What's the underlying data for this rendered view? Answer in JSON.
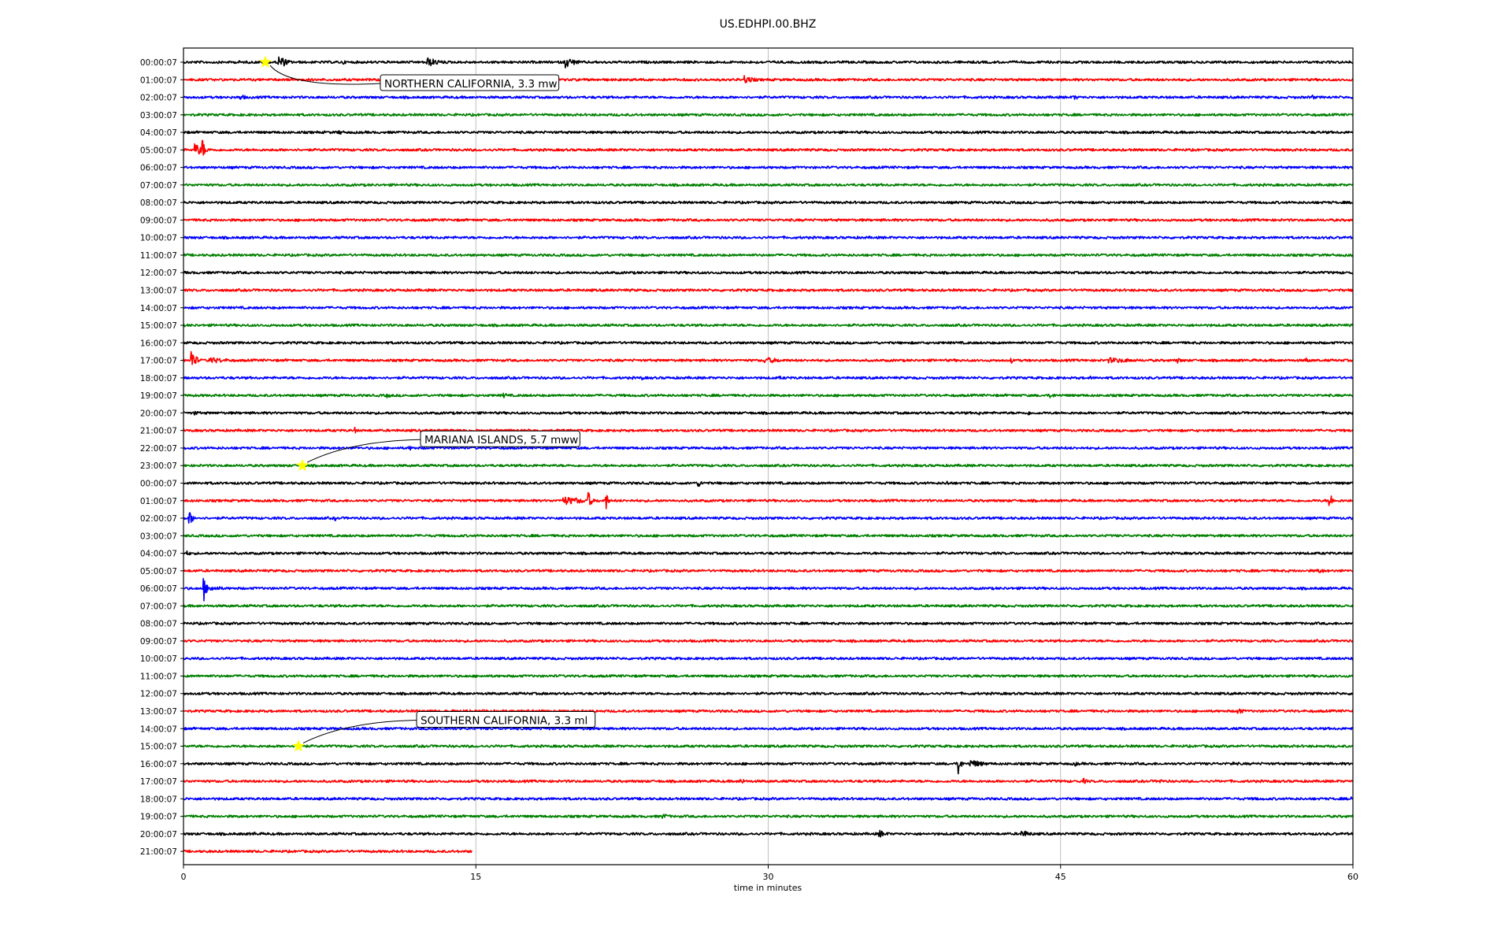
{
  "chart_data": {
    "type": "line",
    "title": "US.EDHPI.00.BHZ",
    "xlabel": "time in minutes",
    "ylabel": "",
    "xlim": [
      0,
      60
    ],
    "xticks": [
      "0",
      "15",
      "30",
      "45",
      "60"
    ],
    "xtick_values": [
      0,
      15,
      30,
      45,
      60
    ],
    "vertical_gridlines_at": [
      15,
      30,
      45
    ],
    "row_colors": [
      "#000000",
      "#ff0000",
      "#0000ff",
      "#008000"
    ],
    "row_labels": [
      "00:00:07",
      "01:00:07",
      "02:00:07",
      "03:00:07",
      "04:00:07",
      "05:00:07",
      "06:00:07",
      "07:00:07",
      "08:00:07",
      "09:00:07",
      "10:00:07",
      "11:00:07",
      "12:00:07",
      "13:00:07",
      "14:00:07",
      "15:00:07",
      "16:00:07",
      "17:00:07",
      "18:00:07",
      "19:00:07",
      "20:00:07",
      "21:00:07",
      "22:00:07",
      "23:00:07",
      "00:00:07",
      "01:00:07",
      "02:00:07",
      "03:00:07",
      "04:00:07",
      "05:00:07",
      "06:00:07",
      "07:00:07",
      "08:00:07",
      "09:00:07",
      "10:00:07",
      "11:00:07",
      "12:00:07",
      "13:00:07",
      "14:00:07",
      "15:00:07",
      "16:00:07",
      "17:00:07",
      "18:00:07",
      "19:00:07",
      "20:00:07",
      "21:00:07"
    ],
    "last_row_end_minute": 14.8,
    "bursts": [
      {
        "row": 0,
        "minute": 4.9,
        "amp": 1.0,
        "dur": 0.9
      },
      {
        "row": 0,
        "minute": 12.5,
        "amp": 0.7,
        "dur": 1.5
      },
      {
        "row": 0,
        "minute": 19.6,
        "amp": 0.8,
        "dur": 1.2
      },
      {
        "row": 0,
        "minute": 2.8,
        "amp": 0.3,
        "dur": 0.5
      },
      {
        "row": 0,
        "minute": 8.2,
        "amp": 0.35,
        "dur": 0.3
      },
      {
        "row": 1,
        "minute": 28.8,
        "amp": 0.6,
        "dur": 1.2
      },
      {
        "row": 1,
        "minute": 23.2,
        "amp": 0.25,
        "dur": 0.6
      },
      {
        "row": 2,
        "minute": 2.9,
        "amp": 0.5,
        "dur": 0.7
      },
      {
        "row": 2,
        "minute": 45.7,
        "amp": 0.35,
        "dur": 0.8
      },
      {
        "row": 2,
        "minute": 57.9,
        "amp": 0.45,
        "dur": 0.3
      },
      {
        "row": 4,
        "minute": 8.0,
        "amp": 0.4,
        "dur": 0.4
      },
      {
        "row": 5,
        "minute": 0.6,
        "amp": 0.9,
        "dur": 1.2
      },
      {
        "row": 5,
        "minute": 1.0,
        "amp": 1.6,
        "dur": 0.2
      },
      {
        "row": 17,
        "minute": 0.4,
        "amp": 1.8,
        "dur": 0.5
      },
      {
        "row": 17,
        "minute": 1.3,
        "amp": 0.5,
        "dur": 2.5
      },
      {
        "row": 17,
        "minute": 29.8,
        "amp": 0.5,
        "dur": 2.2
      },
      {
        "row": 17,
        "minute": 47.5,
        "amp": 0.4,
        "dur": 3.8
      },
      {
        "row": 17,
        "minute": 51.0,
        "amp": 0.4,
        "dur": 0.6
      },
      {
        "row": 17,
        "minute": 57.6,
        "amp": 0.5,
        "dur": 0.4
      },
      {
        "row": 17,
        "minute": 42.5,
        "amp": 0.45,
        "dur": 0.2
      },
      {
        "row": 18,
        "minute": 23.5,
        "amp": 0.35,
        "dur": 0.3
      },
      {
        "row": 18,
        "minute": 30.6,
        "amp": 0.3,
        "dur": 0.3
      },
      {
        "row": 18,
        "minute": 46.5,
        "amp": 0.35,
        "dur": 0.3
      },
      {
        "row": 19,
        "minute": 10.4,
        "amp": 0.4,
        "dur": 0.8
      },
      {
        "row": 19,
        "minute": 16.4,
        "amp": 0.4,
        "dur": 0.8
      },
      {
        "row": 19,
        "minute": 44.5,
        "amp": 0.45,
        "dur": 0.6
      },
      {
        "row": 20,
        "minute": 0.6,
        "amp": 0.35,
        "dur": 0.6
      },
      {
        "row": 20,
        "minute": 40.8,
        "amp": 0.35,
        "dur": 0.6
      },
      {
        "row": 20,
        "minute": 43.4,
        "amp": 0.3,
        "dur": 0.4
      },
      {
        "row": 21,
        "minute": 8.8,
        "amp": 0.45,
        "dur": 0.3
      },
      {
        "row": 22,
        "minute": 11.6,
        "amp": 0.35,
        "dur": 0.6
      },
      {
        "row": 24,
        "minute": 26.4,
        "amp": 0.55,
        "dur": 0.6
      },
      {
        "row": 24,
        "minute": 39.2,
        "amp": 0.35,
        "dur": 0.5
      },
      {
        "row": 25,
        "minute": 19.5,
        "amp": 0.6,
        "dur": 3.5
      },
      {
        "row": 25,
        "minute": 20.8,
        "amp": 1.3,
        "dur": 0.3
      },
      {
        "row": 25,
        "minute": 21.7,
        "amp": 1.4,
        "dur": 0.2
      },
      {
        "row": 25,
        "minute": 58.8,
        "amp": 1.5,
        "dur": 0.3
      },
      {
        "row": 26,
        "minute": 0.3,
        "amp": 1.1,
        "dur": 0.4
      },
      {
        "row": 26,
        "minute": 7.8,
        "amp": 0.35,
        "dur": 0.3
      },
      {
        "row": 28,
        "minute": 0.2,
        "amp": 0.35,
        "dur": 0.6
      },
      {
        "row": 29,
        "minute": 58.2,
        "amp": 0.35,
        "dur": 1.5
      },
      {
        "row": 30,
        "minute": 1.2,
        "amp": 0.6,
        "dur": 1.5
      },
      {
        "row": 30,
        "minute": 1.05,
        "amp": 2.0,
        "dur": 0.15
      },
      {
        "row": 37,
        "minute": 54.1,
        "amp": 0.55,
        "dur": 0.6
      },
      {
        "row": 40,
        "minute": 39.8,
        "amp": 2.0,
        "dur": 0.2
      },
      {
        "row": 40,
        "minute": 40.4,
        "amp": 0.6,
        "dur": 1.6
      },
      {
        "row": 40,
        "minute": 45.8,
        "amp": 0.35,
        "dur": 0.3
      },
      {
        "row": 40,
        "minute": 53.8,
        "amp": 0.35,
        "dur": 0.6
      },
      {
        "row": 41,
        "minute": 28.6,
        "amp": 0.5,
        "dur": 0.5
      },
      {
        "row": 41,
        "minute": 46.2,
        "amp": 0.4,
        "dur": 0.5
      },
      {
        "row": 41,
        "minute": 50.1,
        "amp": 0.4,
        "dur": 0.4
      },
      {
        "row": 42,
        "minute": 55.0,
        "amp": 0.35,
        "dur": 0.3
      },
      {
        "row": 42,
        "minute": 59.9,
        "amp": 0.4,
        "dur": 0.3
      },
      {
        "row": 43,
        "minute": 24.6,
        "amp": 0.4,
        "dur": 1.0
      },
      {
        "row": 44,
        "minute": 3.6,
        "amp": 0.4,
        "dur": 0.4
      },
      {
        "row": 44,
        "minute": 35.7,
        "amp": 0.6,
        "dur": 0.9
      },
      {
        "row": 44,
        "minute": 43.0,
        "amp": 0.55,
        "dur": 1.2
      }
    ],
    "annotations": [
      {
        "label": "NORTHERN CALIFORNIA, 3.3 mw",
        "row": 0,
        "minute": 4.2
      },
      {
        "label": "MARIANA ISLANDS, 5.7 mww",
        "row": 23,
        "minute": 6.1
      },
      {
        "label": "SOUTHERN CALIFORNIA, 3.3 ml",
        "row": 39,
        "minute": 5.9
      }
    ],
    "marker_color": "#ffff00",
    "grid": "vertical only"
  }
}
